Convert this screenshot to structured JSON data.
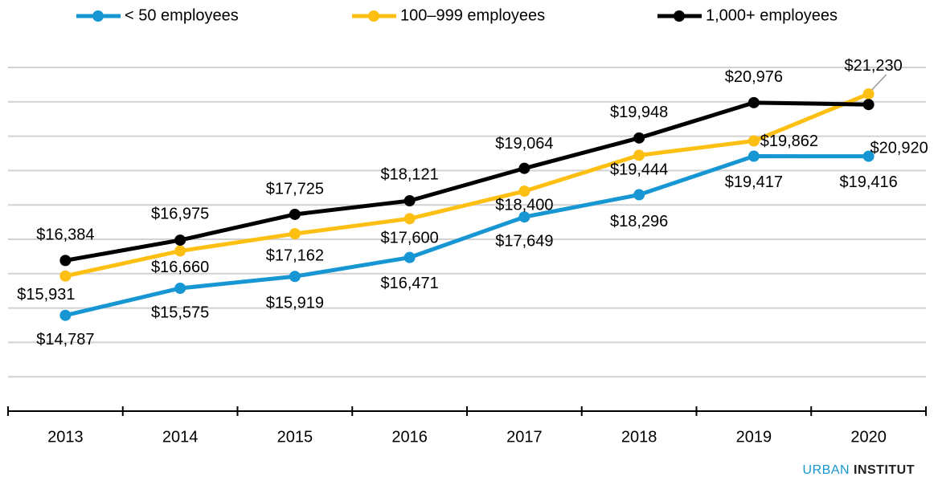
{
  "chart_data": {
    "type": "line",
    "categories": [
      "2013",
      "2014",
      "2015",
      "2016",
      "2017",
      "2018",
      "2019",
      "2020"
    ],
    "series": [
      {
        "name": "< 50 employees",
        "color": "#1696d2",
        "values": [
          14787,
          15575,
          15919,
          16471,
          17649,
          18296,
          19417,
          19416
        ],
        "value_labels": [
          "$14,787",
          "$15,575",
          "$15,919",
          "$16,471",
          "$17,649",
          "$18,296",
          "$19,417",
          "$19,416"
        ]
      },
      {
        "name": "100–999 employees",
        "color": "#fdbf11",
        "values": [
          15931,
          16660,
          17162,
          17600,
          18400,
          19444,
          19862,
          21230
        ],
        "value_labels": [
          "$15,931",
          "$16,660",
          "$17,162",
          "$17,600",
          "$18,400",
          "$19,444",
          "$19,862",
          "$21,230"
        ]
      },
      {
        "name": "1,000+ employees",
        "color": "#000000",
        "values": [
          16384,
          16975,
          17725,
          18121,
          19064,
          19948,
          20976,
          20920
        ],
        "value_labels": [
          "$16,384",
          "$16,975",
          "$17,725",
          "$18,121",
          "$19,064",
          "$19,948",
          "$20,976",
          "$20,920"
        ]
      }
    ],
    "ylim": [
      12000,
      22000
    ],
    "yticks": [
      12000,
      13000,
      14000,
      15000,
      16000,
      17000,
      18000,
      19000,
      20000,
      21000,
      22000
    ],
    "grid": true,
    "legend": "top"
  },
  "footer": {
    "brand": "URBAN",
    "name": "INSTITUT"
  }
}
